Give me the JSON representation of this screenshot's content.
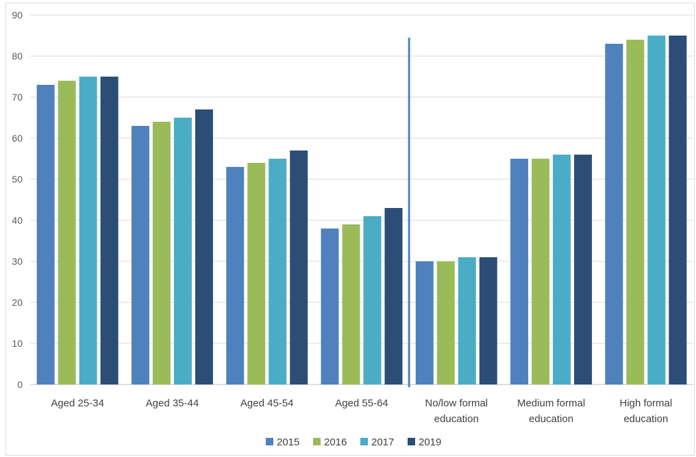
{
  "chart_data": {
    "type": "bar",
    "categories": [
      [
        "Aged 25-34"
      ],
      [
        "Aged 35-44"
      ],
      [
        "Aged 45-54"
      ],
      [
        "Aged 55-64"
      ],
      [
        "No/low formal",
        "education"
      ],
      [
        "Medium formal",
        "education"
      ],
      [
        "High formal",
        "education"
      ]
    ],
    "series": [
      {
        "name": "2015",
        "color": "#4f81bd",
        "values": [
          73,
          63,
          53,
          38,
          30,
          55,
          83
        ]
      },
      {
        "name": "2016",
        "color": "#9bbb59",
        "values": [
          74,
          64,
          54,
          39,
          30,
          55,
          84
        ]
      },
      {
        "name": "2017",
        "color": "#4bacc6",
        "values": [
          75,
          65,
          55,
          41,
          31,
          56,
          85
        ]
      },
      {
        "name": "2019",
        "color": "#2c4d75",
        "values": [
          75,
          67,
          57,
          43,
          31,
          56,
          85
        ]
      }
    ],
    "ylim": [
      0,
      90
    ],
    "yticks": [
      "0",
      "10",
      "20",
      "30",
      "40",
      "50",
      "60",
      "70",
      "80",
      "90"
    ],
    "grid": true,
    "legend": "bottom",
    "divider_after_category": 4,
    "divider_color": "#4f81bd"
  }
}
